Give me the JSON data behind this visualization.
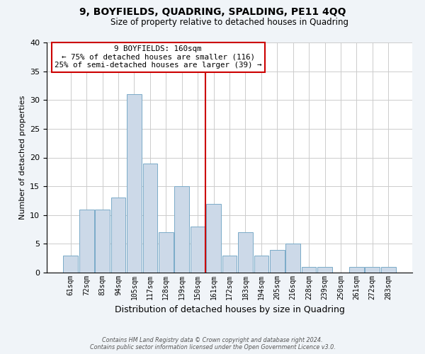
{
  "title": "9, BOYFIELDS, QUADRING, SPALDING, PE11 4QQ",
  "subtitle": "Size of property relative to detached houses in Quadring",
  "xlabel": "Distribution of detached houses by size in Quadring",
  "ylabel": "Number of detached properties",
  "bar_labels": [
    "61sqm",
    "72sqm",
    "83sqm",
    "94sqm",
    "105sqm",
    "117sqm",
    "128sqm",
    "139sqm",
    "150sqm",
    "161sqm",
    "172sqm",
    "183sqm",
    "194sqm",
    "205sqm",
    "216sqm",
    "228sqm",
    "239sqm",
    "250sqm",
    "261sqm",
    "272sqm",
    "283sqm"
  ],
  "bar_values": [
    3,
    11,
    11,
    13,
    31,
    19,
    7,
    15,
    8,
    12,
    3,
    7,
    3,
    4,
    5,
    1,
    1,
    0,
    1,
    1,
    1
  ],
  "bar_color": "#ccd9e8",
  "bar_edge_color": "#7aaac8",
  "bar_edge_width": 0.7,
  "property_line_color": "#cc0000",
  "annotation_title": "9 BOYFIELDS: 160sqm",
  "annotation_line1": "← 75% of detached houses are smaller (116)",
  "annotation_line2": "25% of semi-detached houses are larger (39) →",
  "annotation_box_color": "#ffffff",
  "annotation_box_edge_color": "#cc0000",
  "ylim": [
    0,
    40
  ],
  "yticks": [
    0,
    5,
    10,
    15,
    20,
    25,
    30,
    35,
    40
  ],
  "footer_line1": "Contains HM Land Registry data © Crown copyright and database right 2024.",
  "footer_line2": "Contains public sector information licensed under the Open Government Licence v3.0.",
  "bg_color": "#f0f4f8",
  "plot_bg_color": "#ffffff",
  "grid_color": "#cccccc"
}
